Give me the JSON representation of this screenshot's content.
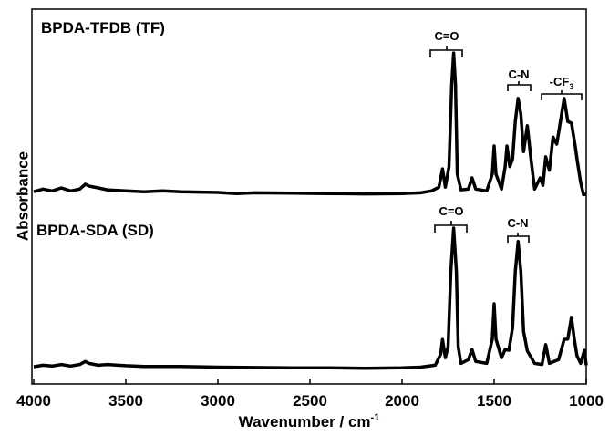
{
  "chart_data": {
    "type": "line",
    "y_label": "Absorbance",
    "x_label": "Wavenumber / cm",
    "x_label_superscript": "-1",
    "xlim": [
      4000,
      1000
    ],
    "xticks": [
      4000,
      3500,
      3000,
      2500,
      2000,
      1500,
      1000
    ],
    "ylim": [
      0,
      100
    ],
    "series": [
      {
        "name": "BPDA-TFDB (TF)",
        "color": "#000000",
        "x": [
          4000,
          3950,
          3900,
          3850,
          3800,
          3750,
          3720,
          3700,
          3650,
          3600,
          3500,
          3400,
          3300,
          3200,
          3000,
          2900,
          2800,
          2600,
          2400,
          2200,
          2000,
          1900,
          1840,
          1800,
          1780,
          1765,
          1745,
          1730,
          1720,
          1710,
          1700,
          1680,
          1640,
          1620,
          1600,
          1540,
          1510,
          1500,
          1490,
          1460,
          1440,
          1430,
          1415,
          1400,
          1385,
          1370,
          1355,
          1340,
          1320,
          1300,
          1280,
          1250,
          1235,
          1220,
          1200,
          1180,
          1160,
          1140,
          1120,
          1100,
          1080,
          1060,
          1050,
          1030,
          1015,
          1000
        ],
        "values": [
          51.3,
          52.0,
          51.5,
          52.3,
          51.5,
          52.0,
          53.3,
          52.8,
          52.3,
          51.8,
          51.5,
          51.3,
          51.5,
          51.3,
          51.1,
          50.8,
          51.0,
          50.9,
          50.8,
          50.7,
          50.8,
          51.0,
          51.5,
          52.5,
          57.4,
          52.5,
          58,
          80,
          88.3,
          80,
          56,
          51.8,
          52,
          55.0,
          52,
          51.5,
          56,
          63.5,
          56,
          52,
          58,
          63.5,
          58,
          60,
          70,
          76.2,
          72,
          62,
          68.9,
          60,
          52,
          55,
          53,
          60.6,
          57,
          65.9,
          64,
          70,
          76.2,
          70,
          69.6,
          63.5,
          60,
          53.8,
          50.5,
          50.6
        ],
        "annotations": [
          {
            "text": "C=O"
          },
          {
            "text": "C-N"
          },
          {
            "text": "-CF",
            "subscript": "3"
          }
        ]
      },
      {
        "name": "BPDA-SDA (SD)",
        "color": "#000000",
        "x": [
          4000,
          3950,
          3900,
          3850,
          3800,
          3750,
          3720,
          3700,
          3650,
          3600,
          3500,
          3400,
          3200,
          3000,
          2800,
          2600,
          2400,
          2200,
          2000,
          1900,
          1820,
          1790,
          1780,
          1765,
          1750,
          1735,
          1720,
          1705,
          1695,
          1680,
          1640,
          1620,
          1600,
          1540,
          1510,
          1500,
          1490,
          1460,
          1440,
          1420,
          1400,
          1385,
          1370,
          1355,
          1340,
          1320,
          1280,
          1240,
          1220,
          1200,
          1150,
          1120,
          1100,
          1080,
          1065,
          1050,
          1030,
          1010,
          1000
        ],
        "values": [
          4.6,
          5.0,
          4.8,
          5.2,
          4.8,
          5.2,
          6.0,
          5.5,
          5.0,
          5.2,
          4.9,
          4.7,
          4.7,
          4.5,
          4.4,
          4.3,
          4.3,
          4.2,
          4.3,
          4.5,
          5.0,
          8,
          11.9,
          7,
          10,
          30,
          41.6,
          30,
          10,
          5.5,
          6.5,
          9.2,
          6.0,
          5.5,
          12,
          21.4,
          12,
          7,
          9.2,
          9,
          15,
          30,
          38.0,
          30,
          14,
          8.8,
          5.5,
          5.2,
          10.5,
          5.5,
          6.5,
          11.9,
          12,
          17.8,
          12,
          7.5,
          5.5,
          9.0,
          5
        ],
        "annotations": [
          {
            "text": "C=O"
          },
          {
            "text": "C-N"
          }
        ]
      }
    ]
  }
}
